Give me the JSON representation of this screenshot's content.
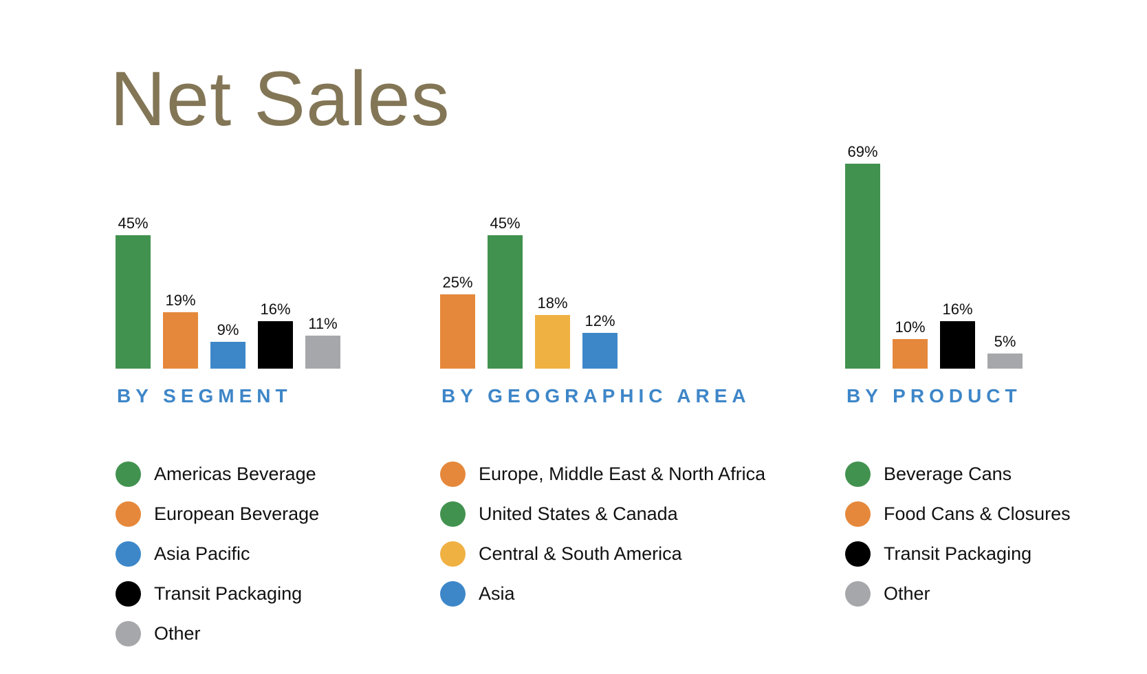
{
  "title": "Net Sales",
  "colors": {
    "title": "#837656",
    "section_label": "#3e86c8",
    "green": "#42924f",
    "orange": "#e5883b",
    "blue": "#3d87c9",
    "black": "#000000",
    "gray": "#a6a7aa",
    "yellow": "#f0b143"
  },
  "panels": [
    {
      "label": "BY SEGMENT",
      "items": [
        {
          "name": "Americas Beverage",
          "value": 45,
          "display": "45%",
          "color": "#42924f"
        },
        {
          "name": "European Beverage",
          "value": 19,
          "display": "19%",
          "color": "#e5883b"
        },
        {
          "name": "Asia Pacific",
          "value": 9,
          "display": "9%",
          "color": "#3d87c9"
        },
        {
          "name": "Transit Packaging",
          "value": 16,
          "display": "16%",
          "color": "#000000"
        },
        {
          "name": "Other",
          "value": 11,
          "display": "11%",
          "color": "#a6a7aa"
        }
      ]
    },
    {
      "label": "BY GEOGRAPHIC AREA",
      "items": [
        {
          "name": "Europe, Middle East & North Africa",
          "value": 25,
          "display": "25%",
          "color": "#e5883b"
        },
        {
          "name": "United States & Canada",
          "value": 45,
          "display": "45%",
          "color": "#42924f"
        },
        {
          "name": "Central & South America",
          "value": 18,
          "display": "18%",
          "color": "#f0b143"
        },
        {
          "name": "Asia",
          "value": 12,
          "display": "12%",
          "color": "#3d87c9"
        }
      ]
    },
    {
      "label": "BY PRODUCT",
      "items": [
        {
          "name": "Beverage Cans",
          "value": 69,
          "display": "69%",
          "color": "#42924f"
        },
        {
          "name": "Food Cans & Closures",
          "value": 10,
          "display": "10%",
          "color": "#e5883b"
        },
        {
          "name": "Transit Packaging",
          "value": 16,
          "display": "16%",
          "color": "#000000"
        },
        {
          "name": "Other",
          "value": 5,
          "display": "5%",
          "color": "#a6a7aa"
        }
      ]
    }
  ],
  "chart_data": [
    {
      "type": "bar",
      "title": "Net Sales — By Segment",
      "categories": [
        "Americas Beverage",
        "European Beverage",
        "Asia Pacific",
        "Transit Packaging",
        "Other"
      ],
      "values": [
        45,
        19,
        9,
        16,
        11
      ],
      "unit": "%",
      "xlabel": "BY SEGMENT",
      "ylabel": "",
      "grid": false,
      "legend_position": "bottom"
    },
    {
      "type": "bar",
      "title": "Net Sales — By Geographic Area",
      "categories": [
        "Europe, Middle East & North Africa",
        "United States & Canada",
        "Central & South America",
        "Asia"
      ],
      "values": [
        25,
        45,
        18,
        12
      ],
      "unit": "%",
      "xlabel": "BY GEOGRAPHIC AREA",
      "ylabel": "",
      "grid": false,
      "legend_position": "bottom"
    },
    {
      "type": "bar",
      "title": "Net Sales — By Product",
      "categories": [
        "Beverage Cans",
        "Food Cans & Closures",
        "Transit Packaging",
        "Other"
      ],
      "values": [
        69,
        10,
        16,
        5
      ],
      "unit": "%",
      "xlabel": "BY PRODUCT",
      "ylabel": "",
      "grid": false,
      "legend_position": "bottom"
    }
  ]
}
